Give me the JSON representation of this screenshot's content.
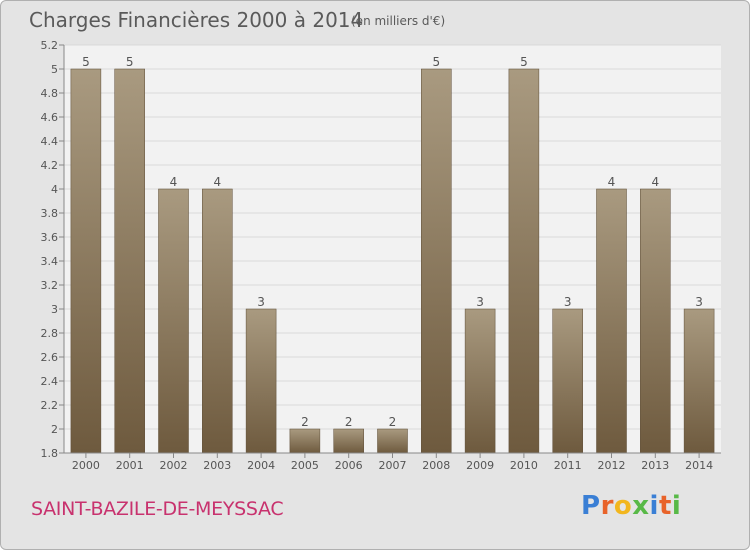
{
  "header": {
    "title": "Charges Financières 2000 à 2014",
    "unit": "(en milliers d'€)"
  },
  "footer": {
    "commune": "SAINT-BAZILE-DE-MEYSSAC",
    "logo": "Proxiti"
  },
  "colors": {
    "bar_top": "#a99a80",
    "bar_bottom": "#6e5a3e",
    "plot_bg": "#f2f2f2",
    "grid": "#d9d9d9",
    "commune_text": "#c8326e"
  },
  "chart_data": {
    "type": "bar",
    "title": "Charges Financières 2000 à 2014",
    "xlabel": "",
    "ylabel": "",
    "categories": [
      "2000",
      "2001",
      "2002",
      "2003",
      "2004",
      "2005",
      "2006",
      "2007",
      "2008",
      "2009",
      "2010",
      "2011",
      "2012",
      "2013",
      "2014"
    ],
    "values": [
      5,
      5,
      4,
      4,
      3,
      2,
      2,
      2,
      5,
      3,
      5,
      3,
      4,
      4,
      3
    ],
    "data_labels": [
      "5",
      "5",
      "4",
      "4",
      "3",
      "2",
      "2",
      "2",
      "5",
      "3",
      "5",
      "3",
      "4",
      "4",
      "3"
    ],
    "ylim": [
      1.8,
      5.2
    ],
    "yticks": [
      "1.8",
      "2",
      "2.2",
      "2.4",
      "2.6",
      "2.8",
      "3",
      "3.2",
      "3.4",
      "3.6",
      "3.8",
      "4",
      "4.2",
      "4.4",
      "4.6",
      "4.8",
      "5",
      "5.2"
    ],
    "grid": true,
    "legend": "none"
  }
}
